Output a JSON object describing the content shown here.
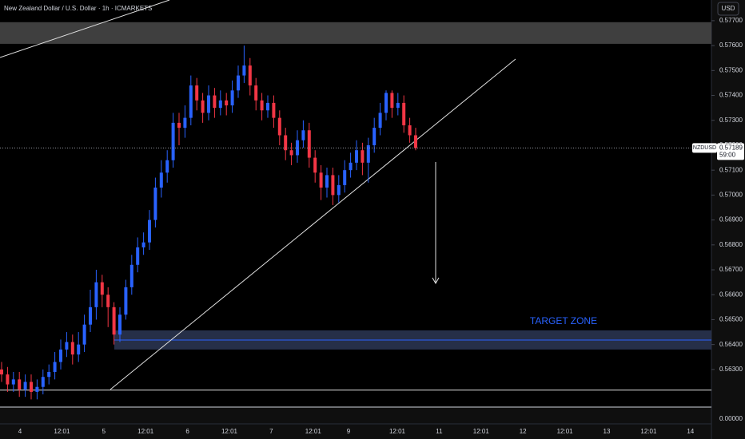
{
  "chart_data": {
    "type": "candlestick",
    "title": "New Zealand Dollar / U.S. Dollar · 1h · ICMARKETS",
    "currency": "USD",
    "symbol": "NZDUSD",
    "last_price": {
      "value": 0.57189,
      "label": "0.57189"
    },
    "countdown": "59:00",
    "annotation": "TARGET ZONE",
    "up_color": "#2962ff",
    "down_color": "#f23645",
    "ylim": [
      0.56149,
      0.57783
    ],
    "yticks": [
      {
        "value": 0.577,
        "label": "0.57700"
      },
      {
        "value": 0.576,
        "label": "0.57600"
      },
      {
        "value": 0.575,
        "label": "0.57500"
      },
      {
        "value": 0.574,
        "label": "0.57400"
      },
      {
        "value": 0.573,
        "label": "0.57300"
      },
      {
        "value": 0.572,
        "label": "0.57200"
      },
      {
        "value": 0.571,
        "label": "0.57100"
      },
      {
        "value": 0.57,
        "label": "0.57000"
      },
      {
        "value": 0.569,
        "label": "0.56900"
      },
      {
        "value": 0.568,
        "label": "0.56800"
      },
      {
        "value": 0.567,
        "label": "0.56700"
      },
      {
        "value": 0.566,
        "label": "0.56600"
      },
      {
        "value": 0.565,
        "label": "0.56500"
      },
      {
        "value": 0.564,
        "label": "0.56400"
      },
      {
        "value": 0.563,
        "label": "0.56300"
      }
    ],
    "pane_tick": {
      "value": 0,
      "label": "0.00000"
    },
    "categories": [
      "4",
      "12:01",
      "5",
      "12:01",
      "6",
      "12:01",
      "7",
      "12:01",
      "9",
      "12:01",
      "11",
      "12:01",
      "12",
      "12:01",
      "13",
      "12:01",
      "14"
    ],
    "open": [
      0.563,
      0.5628,
      0.5624,
      0.5626,
      0.5622,
      0.5625,
      0.5621,
      0.5623,
      0.5627,
      0.5629,
      0.5633,
      0.5638,
      0.5641,
      0.5636,
      0.564,
      0.5648,
      0.5655,
      0.5665,
      0.566,
      0.5655,
      0.5644,
      0.5652,
      0.5663,
      0.5672,
      0.5679,
      0.5681,
      0.569,
      0.5703,
      0.5709,
      0.5714,
      0.5729,
      0.5727,
      0.5731,
      0.5744,
      0.5738,
      0.5733,
      0.574,
      0.5735,
      0.5738,
      0.5736,
      0.5742,
      0.5748,
      0.5752,
      0.5744,
      0.5738,
      0.5734,
      0.5737,
      0.5731,
      0.5724,
      0.5718,
      0.5716,
      0.5722,
      0.5726,
      0.5715,
      0.5709,
      0.5703,
      0.5708,
      0.57,
      0.5704,
      0.571,
      0.5713,
      0.5718,
      0.5713,
      0.572,
      0.5727,
      0.5733,
      0.5741,
      0.5735,
      0.5737,
      0.5728,
      0.5724
    ],
    "high": [
      0.5633,
      0.5631,
      0.5629,
      0.5629,
      0.5628,
      0.5628,
      0.5626,
      0.563,
      0.5632,
      0.5637,
      0.5642,
      0.5645,
      0.5644,
      0.5645,
      0.5652,
      0.5662,
      0.567,
      0.5668,
      0.5663,
      0.5657,
      0.5655,
      0.5666,
      0.5676,
      0.5683,
      0.5685,
      0.5694,
      0.5707,
      0.5714,
      0.5718,
      0.5733,
      0.5733,
      0.5736,
      0.5748,
      0.5747,
      0.5741,
      0.5744,
      0.5743,
      0.5742,
      0.5741,
      0.5746,
      0.5752,
      0.576,
      0.5755,
      0.5747,
      0.5741,
      0.574,
      0.574,
      0.5734,
      0.5727,
      0.5721,
      0.5726,
      0.573,
      0.5729,
      0.5718,
      0.5712,
      0.5711,
      0.5711,
      0.5708,
      0.5714,
      0.5717,
      0.5722,
      0.5721,
      0.5723,
      0.5731,
      0.5737,
      0.5742,
      0.5742,
      0.5741,
      0.574,
      0.5731,
      0.5727
    ],
    "low": [
      0.5625,
      0.5621,
      0.5621,
      0.5619,
      0.5619,
      0.5618,
      0.5618,
      0.562,
      0.5624,
      0.5626,
      0.563,
      0.5635,
      0.5632,
      0.5633,
      0.5637,
      0.5645,
      0.565,
      0.5655,
      0.5647,
      0.564,
      0.5641,
      0.565,
      0.566,
      0.5669,
      0.5676,
      0.5678,
      0.5687,
      0.5699,
      0.5705,
      0.5711,
      0.572,
      0.5723,
      0.5728,
      0.5734,
      0.5729,
      0.573,
      0.5731,
      0.5732,
      0.5732,
      0.5733,
      0.5739,
      0.5745,
      0.574,
      0.5734,
      0.573,
      0.5731,
      0.5727,
      0.572,
      0.5714,
      0.5712,
      0.5713,
      0.5719,
      0.5711,
      0.5705,
      0.5698,
      0.5699,
      0.5696,
      0.5697,
      0.5701,
      0.5707,
      0.571,
      0.5708,
      0.5705,
      0.5717,
      0.5724,
      0.573,
      0.5731,
      0.5732,
      0.5725,
      0.5721,
      0.5718
    ],
    "close": [
      0.5628,
      0.5624,
      0.5626,
      0.5622,
      0.5625,
      0.5621,
      0.5623,
      0.5627,
      0.5629,
      0.5633,
      0.5638,
      0.5641,
      0.5636,
      0.564,
      0.5648,
      0.5655,
      0.5665,
      0.566,
      0.5655,
      0.5644,
      0.5652,
      0.5663,
      0.5672,
      0.5679,
      0.5681,
      0.569,
      0.5703,
      0.5709,
      0.5714,
      0.5729,
      0.5727,
      0.5731,
      0.5744,
      0.5738,
      0.5733,
      0.574,
      0.5735,
      0.5738,
      0.5736,
      0.5742,
      0.5748,
      0.5752,
      0.5744,
      0.5738,
      0.5734,
      0.5737,
      0.5731,
      0.5724,
      0.5718,
      0.5716,
      0.5722,
      0.5726,
      0.5715,
      0.5709,
      0.5703,
      0.5708,
      0.57,
      0.5704,
      0.571,
      0.5713,
      0.5718,
      0.5713,
      0.572,
      0.5727,
      0.5733,
      0.5741,
      0.5735,
      0.5737,
      0.5728,
      0.5724,
      0.57189
    ],
    "resistance_zone": [
      0.57607,
      0.57694
    ],
    "target_zone": [
      0.5638,
      0.56457
    ],
    "target_line": 0.56418,
    "support_line": 0.56217
  }
}
